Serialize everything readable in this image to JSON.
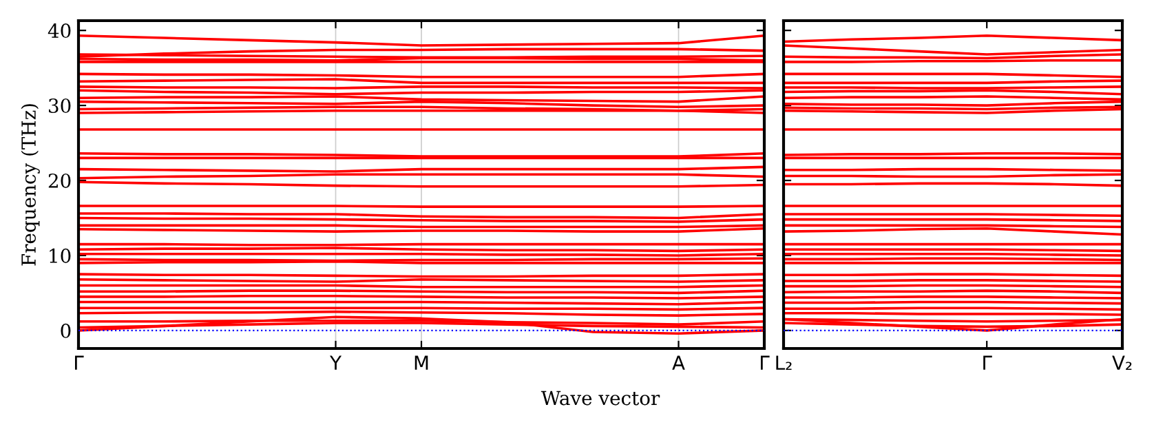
{
  "chart_data": [
    {
      "type": "line",
      "ylabel": "Frequency (THz)",
      "xlabel": "Wave vector",
      "categories": [
        "Γ",
        null,
        null,
        "Y",
        "M",
        null,
        null,
        "A",
        "Γ"
      ],
      "ylim": [
        -2.4,
        41.3
      ],
      "yticks": [
        0,
        10,
        20,
        30,
        40
      ],
      "grid": "x",
      "line_style": "solid",
      "ref_lines": [
        {
          "axis": "y",
          "value": 0,
          "color": "#0000ff",
          "line_style": "dotted"
        }
      ],
      "series": [
        {
          "color": "#ff0000",
          "values": [
            39.3,
            39.0,
            38.7,
            38.4,
            38.0,
            38.1,
            38.2,
            38.3,
            39.3
          ]
        },
        {
          "color": "#ff0000",
          "values": [
            36.5,
            36.9,
            37.2,
            37.4,
            37.4,
            37.5,
            37.5,
            37.5,
            37.3
          ]
        },
        {
          "color": "#ff0000",
          "values": [
            36.8,
            36.7,
            36.6,
            36.5,
            36.4,
            36.4,
            36.5,
            36.5,
            36.6
          ]
        },
        {
          "color": "#ff0000",
          "values": [
            36.2,
            36.1,
            36.1,
            36.0,
            36.3,
            36.3,
            36.2,
            36.2,
            36.0
          ]
        },
        {
          "color": "#ff0000",
          "values": [
            35.8,
            35.8,
            35.8,
            35.8,
            35.8,
            35.8,
            35.8,
            35.8,
            35.8
          ]
        },
        {
          "color": "#ff0000",
          "values": [
            34.2,
            34.1,
            34.1,
            34.0,
            33.8,
            33.8,
            33.8,
            33.8,
            34.2
          ]
        },
        {
          "color": "#ff0000",
          "values": [
            33.2,
            33.3,
            33.4,
            33.5,
            33.0,
            33.0,
            33.0,
            33.0,
            33.0
          ]
        },
        {
          "color": "#ff0000",
          "values": [
            32.5,
            32.4,
            32.4,
            32.3,
            32.5,
            32.5,
            32.4,
            32.4,
            32.3
          ]
        },
        {
          "color": "#ff0000",
          "values": [
            32.0,
            31.8,
            31.7,
            31.5,
            31.7,
            31.7,
            31.8,
            31.8,
            32.0
          ]
        },
        {
          "color": "#ff0000",
          "values": [
            31.0,
            31.1,
            31.1,
            31.2,
            30.8,
            30.7,
            30.6,
            30.5,
            31.2
          ]
        },
        {
          "color": "#ff0000",
          "values": [
            30.5,
            30.4,
            30.3,
            30.2,
            30.5,
            30.3,
            30.0,
            29.8,
            30.0
          ]
        },
        {
          "color": "#ff0000",
          "values": [
            29.5,
            29.6,
            29.7,
            29.8,
            29.8,
            29.6,
            29.5,
            29.3,
            29.5
          ]
        },
        {
          "color": "#ff0000",
          "values": [
            29.0,
            29.1,
            29.2,
            29.3,
            29.3,
            29.3,
            29.3,
            29.3,
            29.0
          ]
        },
        {
          "color": "#ff0000",
          "values": [
            26.8,
            26.8,
            26.8,
            26.8,
            26.8,
            26.8,
            26.8,
            26.8,
            26.8
          ]
        },
        {
          "color": "#ff0000",
          "values": [
            23.6,
            23.5,
            23.5,
            23.4,
            23.2,
            23.2,
            23.2,
            23.2,
            23.6
          ]
        },
        {
          "color": "#ff0000",
          "values": [
            23.0,
            23.0,
            23.0,
            23.0,
            23.0,
            23.0,
            23.0,
            23.0,
            23.0
          ]
        },
        {
          "color": "#ff0000",
          "values": [
            21.5,
            21.4,
            21.3,
            21.2,
            21.5,
            21.5,
            21.5,
            21.5,
            21.8
          ]
        },
        {
          "color": "#ff0000",
          "values": [
            20.3,
            20.5,
            20.6,
            20.8,
            20.8,
            20.8,
            20.8,
            20.8,
            20.5
          ]
        },
        {
          "color": "#ff0000",
          "values": [
            19.8,
            19.6,
            19.5,
            19.3,
            19.2,
            19.2,
            19.2,
            19.2,
            19.4
          ]
        },
        {
          "color": "#ff0000",
          "values": [
            16.6,
            16.6,
            16.6,
            16.6,
            16.5,
            16.5,
            16.5,
            16.5,
            16.6
          ]
        },
        {
          "color": "#ff0000",
          "values": [
            15.6,
            15.6,
            15.5,
            15.5,
            15.2,
            15.1,
            15.1,
            15.0,
            15.5
          ]
        },
        {
          "color": "#ff0000",
          "values": [
            15.0,
            14.9,
            14.9,
            14.8,
            14.7,
            14.6,
            14.6,
            14.5,
            14.8
          ]
        },
        {
          "color": "#ff0000",
          "values": [
            14.0,
            14.0,
            14.0,
            14.0,
            13.8,
            13.8,
            13.8,
            13.8,
            14.0
          ]
        },
        {
          "color": "#ff0000",
          "values": [
            13.5,
            13.4,
            13.3,
            13.2,
            13.3,
            13.3,
            13.2,
            13.2,
            13.6
          ]
        },
        {
          "color": "#ff0000",
          "values": [
            11.5,
            11.5,
            11.4,
            11.4,
            11.5,
            11.5,
            11.5,
            11.5,
            11.5
          ]
        },
        {
          "color": "#ff0000",
          "values": [
            10.8,
            10.9,
            10.9,
            11.0,
            10.8,
            10.7,
            10.7,
            10.6,
            10.8
          ]
        },
        {
          "color": "#ff0000",
          "values": [
            10.2,
            10.2,
            10.2,
            10.2,
            10.2,
            10.1,
            10.1,
            10.0,
            10.2
          ]
        },
        {
          "color": "#ff0000",
          "values": [
            9.5,
            9.4,
            9.4,
            9.3,
            9.4,
            9.4,
            9.5,
            9.5,
            9.6
          ]
        },
        {
          "color": "#ff0000",
          "values": [
            9.0,
            9.1,
            9.1,
            9.2,
            9.0,
            9.0,
            9.0,
            9.0,
            9.0
          ]
        },
        {
          "color": "#ff0000",
          "values": [
            7.5,
            7.4,
            7.4,
            7.3,
            7.2,
            7.2,
            7.3,
            7.3,
            7.5
          ]
        },
        {
          "color": "#ff0000",
          "values": [
            6.8,
            6.7,
            6.6,
            6.5,
            6.8,
            6.7,
            6.6,
            6.5,
            6.7
          ]
        },
        {
          "color": "#ff0000",
          "values": [
            6.0,
            6.0,
            6.0,
            6.0,
            5.8,
            5.8,
            5.8,
            5.8,
            6.0
          ]
        },
        {
          "color": "#ff0000",
          "values": [
            5.2,
            5.2,
            5.3,
            5.3,
            5.2,
            5.1,
            5.1,
            5.0,
            5.3
          ]
        },
        {
          "color": "#ff0000",
          "values": [
            4.5,
            4.5,
            4.6,
            4.6,
            4.5,
            4.4,
            4.4,
            4.3,
            4.5
          ]
        },
        {
          "color": "#ff0000",
          "values": [
            3.8,
            3.8,
            3.8,
            3.8,
            3.8,
            3.7,
            3.6,
            3.5,
            3.8
          ]
        },
        {
          "color": "#ff0000",
          "values": [
            3.0,
            3.0,
            3.0,
            3.0,
            3.0,
            2.9,
            2.9,
            2.8,
            3.0
          ]
        },
        {
          "color": "#ff0000",
          "values": [
            2.3,
            2.4,
            2.4,
            2.5,
            2.4,
            2.3,
            2.1,
            2.0,
            2.2
          ]
        },
        {
          "color": "#ff0000",
          "values": [
            1.2,
            1.2,
            1.3,
            1.3,
            1.3,
            1.1,
            1.0,
            0.8,
            1.2
          ]
        },
        {
          "color": "#ff0000",
          "values": [
            0,
            0.6,
            1.2,
            1.8,
            1.6,
            1.1,
            -0.2,
            -0.4,
            0
          ]
        },
        {
          "color": "#ff0000",
          "values": [
            0.4,
            0.6,
            0.8,
            1.0,
            1.0,
            0.8,
            0.6,
            0.5,
            0.4
          ]
        }
      ]
    },
    {
      "type": "line",
      "categories": [
        "L₂",
        null,
        null,
        "Γ",
        null,
        "V₂"
      ],
      "ylim": [
        -2.4,
        41.3
      ],
      "yticks": [
        0,
        10,
        20,
        30,
        40
      ],
      "tick_labels": "x",
      "line_style": "solid",
      "ref_lines": [
        {
          "axis": "y",
          "value": 0,
          "color": "#0000ff",
          "line_style": "dotted"
        }
      ],
      "series": [
        {
          "color": "#ff0000",
          "values": [
            38.5,
            38.8,
            39.0,
            39.3,
            39.0,
            38.7
          ]
        },
        {
          "color": "#ff0000",
          "values": [
            38.0,
            37.6,
            37.2,
            36.8,
            37.1,
            37.4
          ]
        },
        {
          "color": "#ff0000",
          "values": [
            36.5,
            36.4,
            36.4,
            36.3,
            36.6,
            36.8
          ]
        },
        {
          "color": "#ff0000",
          "values": [
            35.8,
            35.8,
            35.9,
            35.9,
            36.0,
            36.0
          ]
        },
        {
          "color": "#ff0000",
          "values": [
            34.2,
            34.2,
            34.2,
            34.2,
            34.0,
            33.8
          ]
        },
        {
          "color": "#ff0000",
          "values": [
            33.0,
            33.0,
            33.0,
            33.0,
            33.2,
            33.3
          ]
        },
        {
          "color": "#ff0000",
          "values": [
            32.4,
            32.4,
            32.3,
            32.3,
            32.4,
            32.5
          ]
        },
        {
          "color": "#ff0000",
          "values": [
            31.8,
            31.9,
            31.9,
            32.0,
            31.8,
            31.5
          ]
        },
        {
          "color": "#ff0000",
          "values": [
            31.0,
            31.1,
            31.1,
            31.2,
            31.0,
            30.8
          ]
        },
        {
          "color": "#ff0000",
          "values": [
            30.2,
            30.1,
            30.1,
            30.0,
            30.3,
            30.5
          ]
        },
        {
          "color": "#ff0000",
          "values": [
            29.7,
            29.6,
            29.6,
            29.5,
            29.7,
            29.8
          ]
        },
        {
          "color": "#ff0000",
          "values": [
            29.3,
            29.2,
            29.1,
            29.0,
            29.3,
            29.5
          ]
        },
        {
          "color": "#ff0000",
          "values": [
            26.8,
            26.8,
            26.8,
            26.8,
            26.8,
            26.8
          ]
        },
        {
          "color": "#ff0000",
          "values": [
            23.4,
            23.5,
            23.5,
            23.6,
            23.6,
            23.5
          ]
        },
        {
          "color": "#ff0000",
          "values": [
            23.0,
            23.0,
            23.0,
            23.0,
            23.0,
            23.0
          ]
        },
        {
          "color": "#ff0000",
          "values": [
            21.4,
            21.4,
            21.5,
            21.5,
            21.4,
            21.3
          ]
        },
        {
          "color": "#ff0000",
          "values": [
            20.6,
            20.6,
            20.5,
            20.5,
            20.7,
            20.8
          ]
        },
        {
          "color": "#ff0000",
          "values": [
            19.5,
            19.5,
            19.6,
            19.6,
            19.5,
            19.3
          ]
        },
        {
          "color": "#ff0000",
          "values": [
            16.6,
            16.6,
            16.6,
            16.6,
            16.6,
            16.6
          ]
        },
        {
          "color": "#ff0000",
          "values": [
            15.5,
            15.5,
            15.5,
            15.5,
            15.4,
            15.3
          ]
        },
        {
          "color": "#ff0000",
          "values": [
            14.8,
            14.8,
            14.8,
            14.8,
            14.7,
            14.6
          ]
        },
        {
          "color": "#ff0000",
          "values": [
            14.0,
            14.0,
            14.0,
            14.0,
            13.9,
            13.8
          ]
        },
        {
          "color": "#ff0000",
          "values": [
            13.2,
            13.3,
            13.5,
            13.6,
            13.2,
            12.8
          ]
        },
        {
          "color": "#ff0000",
          "values": [
            11.5,
            11.5,
            11.5,
            11.5,
            11.5,
            11.5
          ]
        },
        {
          "color": "#ff0000",
          "values": [
            10.8,
            10.8,
            10.8,
            10.8,
            10.7,
            10.6
          ]
        },
        {
          "color": "#ff0000",
          "values": [
            10.2,
            10.2,
            10.2,
            10.2,
            10.1,
            10.0
          ]
        },
        {
          "color": "#ff0000",
          "values": [
            9.5,
            9.5,
            9.6,
            9.6,
            9.5,
            9.4
          ]
        },
        {
          "color": "#ff0000",
          "values": [
            9.0,
            9.0,
            9.0,
            9.0,
            9.0,
            9.0
          ]
        },
        {
          "color": "#ff0000",
          "values": [
            7.4,
            7.4,
            7.5,
            7.5,
            7.4,
            7.3
          ]
        },
        {
          "color": "#ff0000",
          "values": [
            6.6,
            6.6,
            6.7,
            6.7,
            6.6,
            6.5
          ]
        },
        {
          "color": "#ff0000",
          "values": [
            5.9,
            5.9,
            6.0,
            6.0,
            5.9,
            5.8
          ]
        },
        {
          "color": "#ff0000",
          "values": [
            5.1,
            5.2,
            5.2,
            5.3,
            5.2,
            5.0
          ]
        },
        {
          "color": "#ff0000",
          "values": [
            4.4,
            4.4,
            4.5,
            4.5,
            4.4,
            4.3
          ]
        },
        {
          "color": "#ff0000",
          "values": [
            3.7,
            3.7,
            3.8,
            3.8,
            3.7,
            3.6
          ]
        },
        {
          "color": "#ff0000",
          "values": [
            2.9,
            2.9,
            3.0,
            3.0,
            2.9,
            2.8
          ]
        },
        {
          "color": "#ff0000",
          "values": [
            2.3,
            2.3,
            2.2,
            2.2,
            2.2,
            2.1
          ]
        },
        {
          "color": "#ff0000",
          "values": [
            1.5,
            1.4,
            1.3,
            1.2,
            1.3,
            1.4
          ]
        },
        {
          "color": "#ff0000",
          "values": [
            1.5,
            1.0,
            0.5,
            0,
            0.8,
            1.5
          ]
        },
        {
          "color": "#ff0000",
          "values": [
            1.0,
            0.8,
            0.6,
            0.5,
            0.6,
            0.8
          ]
        }
      ]
    }
  ]
}
